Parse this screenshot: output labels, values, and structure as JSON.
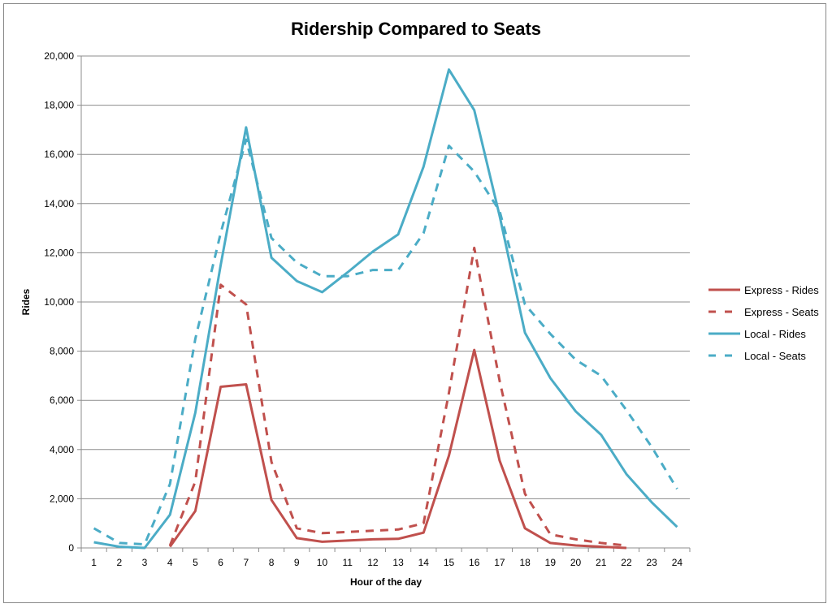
{
  "chart_data": {
    "type": "line",
    "title": "Ridership Compared to Seats",
    "xlabel": "Hour of the day",
    "ylabel": "Rides",
    "ylim": [
      0,
      20000
    ],
    "y_ticks": [
      "0",
      "2,000",
      "4,000",
      "6,000",
      "8,000",
      "10,000",
      "12,000",
      "14,000",
      "16,000",
      "18,000",
      "20,000"
    ],
    "categories": [
      "1",
      "2",
      "3",
      "4",
      "5",
      "6",
      "7",
      "8",
      "9",
      "10",
      "11",
      "12",
      "13",
      "14",
      "15",
      "16",
      "17",
      "18",
      "19",
      "20",
      "21",
      "22",
      "23",
      "24"
    ],
    "grid": "horizontal",
    "legend_position": "right",
    "series": [
      {
        "name": "Express - Rides",
        "color": "#C0504D",
        "style": "solid",
        "values": [
          null,
          null,
          null,
          50,
          1500,
          6550,
          6650,
          1950,
          400,
          250,
          300,
          350,
          370,
          620,
          3750,
          8050,
          3550,
          800,
          200,
          100,
          50,
          0,
          null,
          null
        ]
      },
      {
        "name": "Express - Seats",
        "color": "#C0504D",
        "style": "dashed",
        "values": [
          null,
          null,
          null,
          100,
          2700,
          10700,
          9900,
          3500,
          800,
          600,
          650,
          700,
          750,
          1000,
          6300,
          12200,
          6800,
          2200,
          550,
          350,
          200,
          100,
          null,
          null
        ]
      },
      {
        "name": "Local - Rides",
        "color": "#4BACC6",
        "style": "solid",
        "values": [
          230,
          50,
          0,
          1350,
          5500,
          11500,
          17100,
          11800,
          10850,
          10400,
          11200,
          12050,
          12750,
          15500,
          19450,
          17800,
          13500,
          8750,
          6900,
          5550,
          4600,
          3000,
          1850,
          850
        ]
      },
      {
        "name": "Local - Seats",
        "color": "#4BACC6",
        "style": "dashed",
        "values": [
          800,
          200,
          150,
          2600,
          8500,
          12800,
          16600,
          12600,
          11600,
          11050,
          11050,
          11300,
          11300,
          12800,
          16350,
          15300,
          13700,
          9900,
          8700,
          7650,
          7000,
          5600,
          4100,
          2400
        ]
      }
    ]
  }
}
